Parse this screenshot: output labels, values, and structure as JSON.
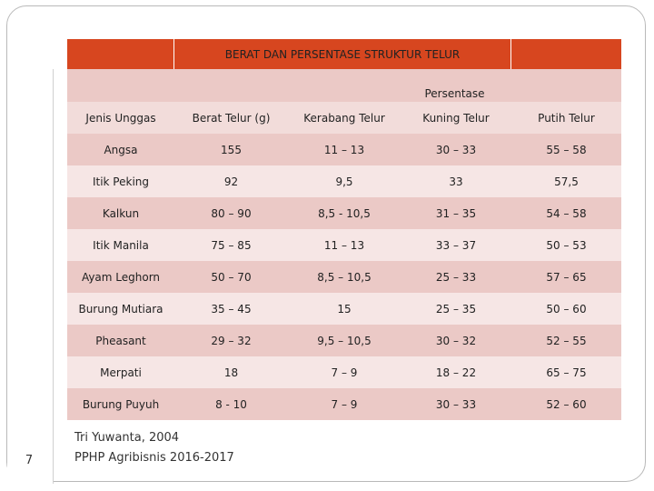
{
  "table": {
    "title": "BERAT DAN PERSENTASE  STRUKTUR TELUR",
    "group_header": "Persentase",
    "columns": [
      "Jenis Unggas",
      "Berat Telur (g)",
      "Kerabang Telur",
      "Kuning Telur",
      "Putih Telur"
    ],
    "rows": [
      [
        "Angsa",
        "155",
        "11 – 13",
        "30 – 33",
        "55 – 58"
      ],
      [
        "Itik Peking",
        "92",
        "9,5",
        "33",
        "57,5"
      ],
      [
        "Kalkun",
        "80 – 90",
        "8,5  - 10,5",
        "31 – 35",
        "54 – 58"
      ],
      [
        "Itik Manila",
        "75 – 85",
        "11 – 13",
        "33 – 37",
        "50 – 53"
      ],
      [
        "Ayam Leghorn",
        "50 – 70",
        "8,5 – 10,5",
        "25 – 33",
        "57 – 65"
      ],
      [
        "Burung Mutiara",
        "35 – 45",
        "15",
        "25 – 35",
        "50 – 60"
      ],
      [
        "Pheasant",
        "29 – 32",
        "9,5 – 10,5",
        "30 – 32",
        "52 – 55"
      ],
      [
        "Merpati",
        "18",
        "7 – 9",
        "18 – 22",
        "65 – 75"
      ],
      [
        "Burung Puyuh",
        "8  - 10",
        "7 – 9",
        "30 – 33",
        "52 – 60"
      ]
    ]
  },
  "footer": {
    "author": "Tri Yuwanta, 2004",
    "course": "PPHP Agribisnis 2016-2017"
  },
  "page_number": "7",
  "colors": {
    "header": "#d7461f",
    "row_dark": "#ebc9c6",
    "row_light": "#f6e6e5"
  }
}
